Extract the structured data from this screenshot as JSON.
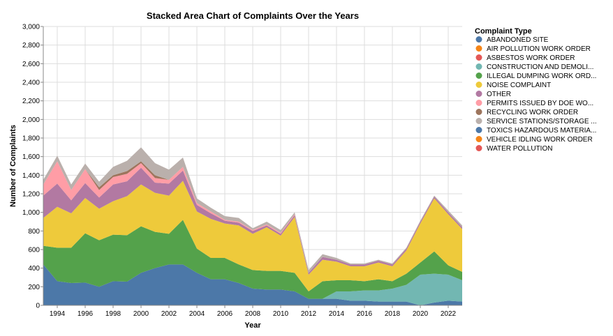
{
  "chart_data": {
    "type": "area",
    "stacked": true,
    "title": "Stacked Area Chart of Complaints Over the Years",
    "xlabel": "Year",
    "ylabel": "Number of Complaints",
    "xlim": [
      1993,
      2023
    ],
    "ylim": [
      0,
      3000
    ],
    "x_ticks": [
      1994,
      1996,
      1998,
      2000,
      2002,
      2004,
      2006,
      2008,
      2010,
      2012,
      2014,
      2016,
      2018,
      2020,
      2022
    ],
    "y_ticks": [
      0,
      200,
      400,
      600,
      800,
      1000,
      1200,
      1400,
      1600,
      1800,
      2000,
      2200,
      2400,
      2600,
      2800,
      3000
    ],
    "y_tick_labels": [
      "0",
      "200",
      "400",
      "600",
      "800",
      "1,000",
      "1,200",
      "1,400",
      "1,600",
      "1,800",
      "2,000",
      "2,200",
      "2,400",
      "2,600",
      "2,800",
      "3,000"
    ],
    "grid": true,
    "legend_title": "Complaint Type",
    "legend_position": "right",
    "x": [
      1993,
      1994,
      1995,
      1996,
      1997,
      1998,
      1999,
      2000,
      2001,
      2002,
      2003,
      2004,
      2005,
      2006,
      2007,
      2008,
      2009,
      2010,
      2011,
      2012,
      2013,
      2014,
      2015,
      2016,
      2017,
      2018,
      2019,
      2020,
      2021,
      2022,
      2023
    ],
    "series": [
      {
        "name": "ABANDONED SITE",
        "color": "#4c78a8",
        "values": [
          440,
          260,
          240,
          245,
          200,
          260,
          255,
          350,
          400,
          440,
          440,
          350,
          280,
          280,
          240,
          180,
          170,
          170,
          150,
          70,
          70,
          70,
          50,
          50,
          40,
          40,
          40,
          0,
          30,
          50,
          40
        ]
      },
      {
        "name": "AIR POLLUTION WORK ORDER",
        "color": "#f58518",
        "values": [
          0,
          0,
          0,
          0,
          0,
          0,
          0,
          0,
          0,
          0,
          0,
          0,
          0,
          0,
          0,
          0,
          0,
          0,
          0,
          0,
          0,
          0,
          0,
          0,
          0,
          0,
          0,
          0,
          0,
          0,
          0
        ]
      },
      {
        "name": "ASBESTOS WORK ORDER",
        "color": "#e45756",
        "values": [
          0,
          0,
          0,
          0,
          0,
          0,
          0,
          0,
          0,
          0,
          0,
          0,
          0,
          0,
          0,
          0,
          0,
          0,
          0,
          0,
          0,
          0,
          0,
          0,
          0,
          0,
          0,
          0,
          0,
          0,
          0
        ]
      },
      {
        "name": "CONSTRUCTION AND DEMOLI...",
        "color": "#72b7b2",
        "values": [
          0,
          0,
          0,
          0,
          0,
          0,
          0,
          0,
          0,
          0,
          0,
          0,
          0,
          0,
          0,
          0,
          0,
          0,
          0,
          0,
          0,
          80,
          100,
          110,
          120,
          140,
          180,
          330,
          310,
          280,
          230
        ]
      },
      {
        "name": "ILLEGAL DUMPING WORK ORD...",
        "color": "#54a24b",
        "values": [
          200,
          360,
          380,
          530,
          500,
          500,
          500,
          500,
          390,
          330,
          480,
          260,
          230,
          230,
          200,
          200,
          200,
          200,
          200,
          80,
          190,
          120,
          120,
          100,
          120,
          80,
          120,
          130,
          240,
          100,
          90
        ]
      },
      {
        "name": "NOISE COMPLAINT",
        "color": "#eeca3b",
        "values": [
          300,
          440,
          370,
          380,
          340,
          360,
          420,
          450,
          420,
          410,
          420,
          400,
          420,
          370,
          420,
          390,
          470,
          380,
          600,
          180,
          230,
          200,
          150,
          160,
          180,
          160,
          250,
          420,
          570,
          550,
          460
        ]
      },
      {
        "name": "OTHER",
        "color": "#b279a2",
        "values": [
          240,
          250,
          140,
          160,
          120,
          180,
          160,
          180,
          110,
          130,
          110,
          70,
          60,
          30,
          30,
          30,
          20,
          20,
          20,
          20,
          30,
          20,
          20,
          20,
          20,
          20,
          20,
          20,
          20,
          20,
          20
        ]
      },
      {
        "name": "PERMITS ISSUED BY DOE WO...",
        "color": "#ff9da6",
        "values": [
          120,
          240,
          110,
          150,
          80,
          80,
          80,
          50,
          50,
          40,
          40,
          20,
          20,
          10,
          10,
          10,
          10,
          10,
          10,
          0,
          0,
          0,
          0,
          0,
          0,
          0,
          0,
          0,
          0,
          0,
          0
        ]
      },
      {
        "name": "RECYCLING WORK ORDER",
        "color": "#9d755d",
        "values": [
          0,
          0,
          0,
          0,
          30,
          20,
          30,
          20,
          30,
          0,
          0,
          0,
          0,
          0,
          0,
          0,
          0,
          0,
          0,
          0,
          0,
          0,
          0,
          0,
          0,
          0,
          0,
          0,
          0,
          0,
          0
        ]
      },
      {
        "name": "SERVICE STATIONS/STORAGE ...",
        "color": "#bab0ac",
        "values": [
          50,
          60,
          60,
          60,
          60,
          90,
          110,
          150,
          130,
          110,
          100,
          50,
          40,
          40,
          40,
          20,
          30,
          30,
          20,
          30,
          30,
          20,
          10,
          10,
          10,
          10,
          10,
          10,
          10,
          20,
          20
        ]
      },
      {
        "name": "TOXICS HAZARDOUS MATERIA...",
        "color": "#4c78a8",
        "values": [
          0,
          0,
          0,
          0,
          0,
          0,
          0,
          0,
          0,
          0,
          0,
          0,
          0,
          0,
          0,
          0,
          0,
          0,
          0,
          0,
          0,
          0,
          0,
          0,
          0,
          0,
          0,
          0,
          0,
          0,
          0
        ]
      },
      {
        "name": "VEHICLE IDLING WORK ORDER",
        "color": "#f58518",
        "values": [
          0,
          0,
          0,
          0,
          0,
          0,
          0,
          0,
          0,
          0,
          0,
          0,
          0,
          0,
          0,
          0,
          0,
          0,
          0,
          0,
          0,
          0,
          0,
          0,
          0,
          0,
          0,
          0,
          0,
          0,
          0
        ]
      },
      {
        "name": "WATER POLLUTION",
        "color": "#e45756",
        "values": [
          0,
          0,
          0,
          0,
          0,
          0,
          0,
          0,
          0,
          0,
          0,
          0,
          0,
          0,
          0,
          0,
          0,
          0,
          0,
          0,
          0,
          0,
          0,
          0,
          0,
          0,
          0,
          0,
          0,
          0,
          0
        ]
      }
    ],
    "stack_layers_render": [
      {
        "series": "TOXICS HAZARDOUS MATERIA...",
        "color": "#4c78a8",
        "values": [
          0,
          0,
          0,
          0,
          0,
          0,
          0,
          0,
          0,
          0,
          0,
          0,
          0,
          0,
          0,
          0,
          0,
          0,
          0,
          0,
          0,
          0,
          0,
          0,
          0,
          0,
          0,
          0,
          0,
          0,
          0
        ]
      }
    ]
  }
}
